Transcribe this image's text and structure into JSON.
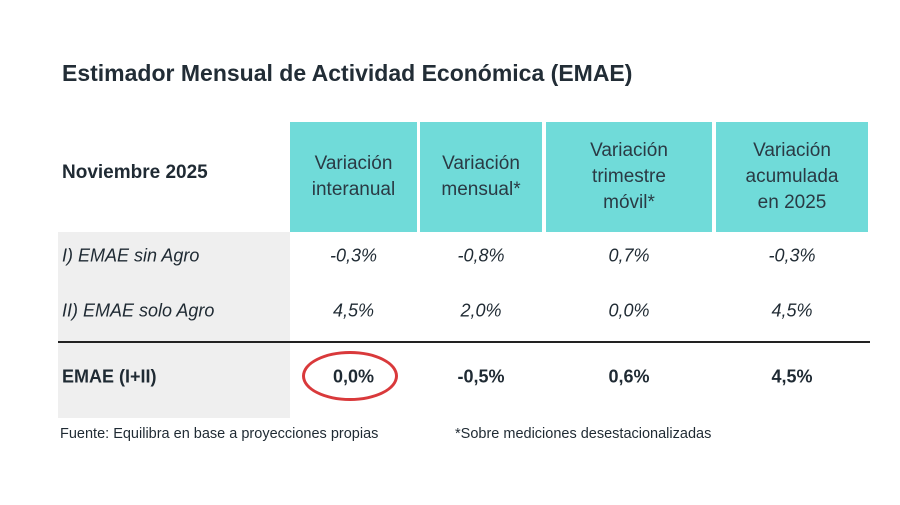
{
  "title": "Estimador Mensual de Actividad Económica (EMAE)",
  "table": {
    "corner": "Noviembre 2025",
    "columns": [
      [
        "Variación",
        "interanual"
      ],
      [
        "Variación",
        "mensual*"
      ],
      [
        "Variación",
        "trimestre",
        "móvil*"
      ],
      [
        "Variación",
        "acumulada",
        "en 2025"
      ]
    ],
    "rows": [
      [
        "I) EMAE sin Agro",
        "-0,3%",
        "-0,8%",
        "0,7%",
        "-0,3%"
      ],
      [
        "II) EMAE solo Agro",
        "4,5%",
        "2,0%",
        "0,0%",
        "4,5%"
      ],
      [
        "EMAE (I+II)",
        "0,0%",
        "-0,5%",
        "0,6%",
        "4,5%"
      ]
    ]
  },
  "footnotes": [
    "Fuente: Equilibra en base a proyecciones propias",
    "*Sobre mediciones desestacionalizadas"
  ]
}
